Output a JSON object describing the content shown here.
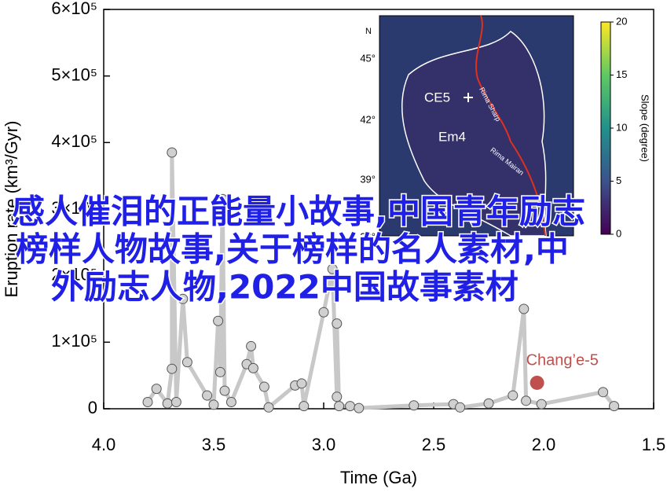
{
  "chart_data": {
    "type": "line",
    "x_label": "Time (Ga)",
    "y_label": "Eruption rate (km³/Gyr)",
    "xlim": [
      4.0,
      1.5
    ],
    "xticks": [
      {
        "value": 4.0,
        "label": "4.0"
      },
      {
        "value": 3.5,
        "label": "3.5"
      },
      {
        "value": 3.0,
        "label": "3.0"
      },
      {
        "value": 2.5,
        "label": "2.5"
      },
      {
        "value": 2.0,
        "label": "2.0"
      },
      {
        "value": 1.5,
        "label": "1.5"
      }
    ],
    "ylim": [
      0,
      600000
    ],
    "yticks": [
      0,
      {
        "value": 100000,
        "label": "1×10⁵"
      },
      {
        "value": 200000,
        "label": "2×10⁵"
      },
      {
        "value": 300000,
        "label": "3×10⁵"
      },
      {
        "value": 400000,
        "label": "4×10⁵"
      },
      {
        "value": 500000,
        "label": "5×10⁵"
      },
      {
        "value": 600000,
        "label": "6×10⁵"
      }
    ],
    "series": [
      {
        "color": "#c8c8c8",
        "x": [
          3.8,
          3.76,
          3.71,
          3.69,
          3.69,
          3.67,
          3.64,
          3.62,
          3.53,
          3.5,
          3.48,
          3.47,
          3.46,
          3.45,
          3.42,
          3.35,
          3.33,
          3.32,
          3.27,
          3.25,
          3.13,
          3.1,
          3.09,
          3.0,
          2.96,
          2.94,
          2.94,
          2.93,
          2.88,
          2.84,
          2.59,
          2.41,
          2.38,
          2.25,
          2.14,
          2.09,
          2.08,
          2.01,
          1.73,
          1.68
        ],
        "values": [
          10000,
          30000,
          8000,
          60000,
          385000,
          10000,
          165000,
          70000,
          20000,
          6000,
          132000,
          55000,
          315000,
          27000,
          10000,
          67000,
          94000,
          61000,
          33000,
          2000,
          35000,
          38000,
          4000,
          145000,
          210000,
          18000,
          128000,
          4000,
          4000,
          1000,
          5000,
          7000,
          2000,
          8000,
          20000,
          150000,
          12000,
          7000,
          25000,
          4000
        ]
      },
      {
        "name": "Chang’e-5",
        "color": "#c0504d",
        "x": [
          2.03
        ],
        "values": [
          39000
        ]
      }
    ]
  },
  "inset": {
    "north": "N",
    "lat_labels": [
      "45°",
      "42°",
      "39°",
      "36°"
    ],
    "site": "CE5",
    "unit": "Em4",
    "rille1": "Rima Sharp",
    "rille2": "Rima Mairan",
    "colorbar_label": "Slope (degree)",
    "colorbar_ticks": [
      0,
      5,
      10,
      15,
      20
    ]
  },
  "overlay_text": [
    "感人催泪的正能量小故事,中国青年励志",
    "榜样人物故事,关于榜样的名人素材,中",
    "外励志人物,2022中国故事素材"
  ]
}
